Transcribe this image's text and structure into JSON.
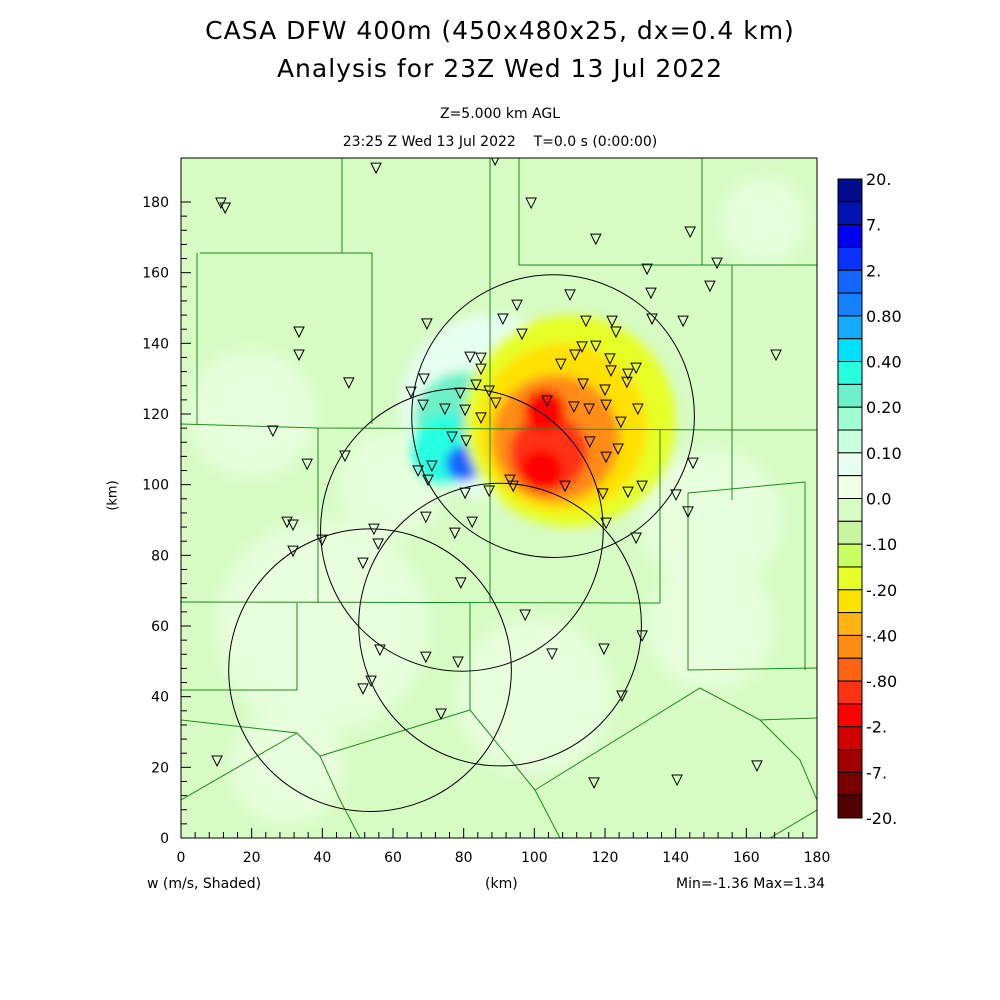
{
  "header": {
    "title_line1": "CASA DFW 400m (450x480x25, dx=0.4 km)",
    "title_line2": "Analysis for 23Z Wed 13 Jul 2022",
    "level": "Z=5.000 km AGL",
    "time": "23:25 Z Wed 13 Jul 2022    T=0.0 s (0:00:00)"
  },
  "footer": {
    "field": "w (m/s, Shaded)",
    "xunit": "(km)",
    "minmax": "Min=-1.36 Max=1.34"
  },
  "chart_data": {
    "type": "heatmap",
    "title": "CASA DFW 400m (450x480x25, dx=0.4 km)",
    "xlabel": "(km)",
    "ylabel": "(km)",
    "xlim": [
      0,
      180
    ],
    "ylim": [
      0,
      192
    ],
    "xticks": [
      "0",
      "20",
      "40",
      "60",
      "80",
      "100",
      "120",
      "140",
      "160",
      "180"
    ],
    "yticks": [
      "0",
      "20",
      "40",
      "60",
      "80",
      "100",
      "120",
      "140",
      "160",
      "180"
    ],
    "colorbar": {
      "labels": [
        "20.",
        "7.",
        "2.",
        "0.80",
        "0.40",
        "0.20",
        "0.10",
        "0.0",
        "-.10",
        "-.20",
        "-.40",
        "-.80",
        "-2.",
        "-7.",
        "-20."
      ],
      "colors": [
        "#000c8c",
        "#0014b4",
        "#0000f5",
        "#0a32ff",
        "#1464ff",
        "#1482ff",
        "#14aaff",
        "#00e1ff",
        "#28ffe1",
        "#6ef0c8",
        "#a0ffd2",
        "#c8ffe1",
        "#e6fff0",
        "#f0ffe6",
        "#d6fbc3",
        "#c8f5a0",
        "#c8ff64",
        "#e6ff28",
        "#ffe100",
        "#ffb414",
        "#ff8c14",
        "#ff6414",
        "#ff3214",
        "#ff0000",
        "#d20000",
        "#a00000",
        "#780000",
        "#500000"
      ]
    },
    "field_min": -1.36,
    "field_max": 1.34,
    "field_features": [
      {
        "x": 88,
        "y": 122,
        "r": 26,
        "color_index": 12
      },
      {
        "x": 80,
        "y": 118,
        "r": 14,
        "color_index": 9
      },
      {
        "x": 75,
        "y": 110,
        "r": 10,
        "color_index": 8
      },
      {
        "x": 88,
        "y": 118,
        "r": 9,
        "color_index": 6
      },
      {
        "x": 92,
        "y": 127,
        "r": 5,
        "color_index": 4
      },
      {
        "x": 87,
        "y": 116,
        "r": 5,
        "color_index": 3
      },
      {
        "x": 80,
        "y": 106,
        "r": 5,
        "color_index": 4
      },
      {
        "x": 110,
        "y": 118,
        "r": 30,
        "color_index": 17
      },
      {
        "x": 108,
        "y": 116,
        "r": 24,
        "color_index": 18
      },
      {
        "x": 106,
        "y": 113,
        "r": 18,
        "color_index": 20
      },
      {
        "x": 104,
        "y": 109,
        "r": 11,
        "color_index": 22
      },
      {
        "x": 103,
        "y": 121,
        "r": 6,
        "color_index": 23
      },
      {
        "x": 102,
        "y": 104,
        "r": 6,
        "color_index": 23
      }
    ],
    "radar_rings_km": [
      {
        "x": 105.3,
        "y": 119.4,
        "r": 40
      },
      {
        "x": 79.5,
        "y": 87.2,
        "r": 40
      },
      {
        "x": 90.3,
        "y": 60.4,
        "r": 40
      },
      {
        "x": 53.5,
        "y": 47.5,
        "r": 40
      }
    ],
    "stations_km": [
      [
        11.3,
        179.7
      ],
      [
        12.5,
        178.3
      ],
      [
        55.2,
        189.6
      ],
      [
        88.9,
        191.9
      ],
      [
        99.1,
        179.7
      ],
      [
        117.4,
        169.5
      ],
      [
        144.1,
        171.5
      ],
      [
        151.7,
        162.7
      ],
      [
        149.7,
        156.2
      ],
      [
        131.9,
        161.0
      ],
      [
        133.0,
        154.2
      ],
      [
        133.3,
        146.9
      ],
      [
        142.1,
        146.3
      ],
      [
        110.1,
        153.7
      ],
      [
        91.1,
        146.9
      ],
      [
        96.5,
        142.6
      ],
      [
        114.6,
        146.3
      ],
      [
        122.0,
        146.3
      ],
      [
        123.1,
        143.2
      ],
      [
        117.4,
        139.2
      ],
      [
        113.5,
        139.0
      ],
      [
        107.5,
        134.1
      ],
      [
        111.5,
        136.7
      ],
      [
        121.4,
        135.6
      ],
      [
        121.7,
        132.2
      ],
      [
        126.5,
        131.3
      ],
      [
        128.8,
        133.0
      ],
      [
        126.2,
        129.0
      ],
      [
        113.8,
        128.5
      ],
      [
        120.0,
        126.8
      ],
      [
        129.3,
        121.4
      ],
      [
        111.2,
        122.0
      ],
      [
        115.5,
        121.4
      ],
      [
        120.3,
        122.5
      ],
      [
        124.5,
        117.7
      ],
      [
        123.7,
        110.1
      ],
      [
        120.3,
        107.8
      ],
      [
        115.7,
        112.1
      ],
      [
        103.6,
        123.7
      ],
      [
        95.1,
        150.8
      ],
      [
        81.8,
        136.1
      ],
      [
        84.9,
        135.8
      ],
      [
        84.9,
        132.7
      ],
      [
        87.2,
        126.5
      ],
      [
        69.6,
        145.5
      ],
      [
        33.4,
        143.2
      ],
      [
        33.4,
        136.7
      ],
      [
        47.5,
        128.8
      ],
      [
        68.8,
        129.9
      ],
      [
        65.1,
        126.2
      ],
      [
        68.5,
        122.5
      ],
      [
        79.0,
        125.9
      ],
      [
        83.5,
        128.2
      ],
      [
        74.7,
        121.4
      ],
      [
        80.4,
        121.1
      ],
      [
        84.9,
        118.9
      ],
      [
        89.1,
        123.1
      ],
      [
        80.7,
        112.4
      ],
      [
        76.7,
        113.5
      ],
      [
        71.0,
        105.3
      ],
      [
        67.1,
        103.9
      ],
      [
        69.9,
        101.3
      ],
      [
        80.4,
        97.6
      ],
      [
        87.2,
        98.2
      ],
      [
        93.1,
        101.3
      ],
      [
        94.0,
        99.6
      ],
      [
        108.7,
        99.6
      ],
      [
        119.4,
        97.4
      ],
      [
        126.5,
        97.9
      ],
      [
        130.5,
        99.6
      ],
      [
        140.1,
        97.1
      ],
      [
        143.5,
        92.3
      ],
      [
        120.3,
        89.1
      ],
      [
        128.8,
        84.9
      ],
      [
        69.3,
        90.8
      ],
      [
        77.5,
        86.3
      ],
      [
        82.4,
        89.4
      ],
      [
        46.4,
        108.1
      ],
      [
        26.0,
        115.2
      ],
      [
        35.7,
        105.8
      ],
      [
        30.0,
        89.4
      ],
      [
        31.7,
        88.6
      ],
      [
        31.7,
        81.2
      ],
      [
        39.9,
        84.3
      ],
      [
        54.6,
        87.4
      ],
      [
        55.8,
        83.2
      ],
      [
        51.5,
        77.8
      ],
      [
        79.2,
        72.2
      ],
      [
        97.4,
        63.1
      ],
      [
        130.5,
        57.2
      ],
      [
        105.0,
        52.1
      ],
      [
        119.7,
        53.5
      ],
      [
        56.3,
        53.2
      ],
      [
        69.3,
        51.2
      ],
      [
        78.4,
        49.8
      ],
      [
        51.5,
        42.2
      ],
      [
        53.8,
        44.4
      ],
      [
        73.6,
        35.1
      ],
      [
        124.8,
        40.2
      ],
      [
        163.0,
        20.4
      ],
      [
        140.4,
        16.4
      ],
      [
        116.9,
        15.6
      ],
      [
        10.2,
        21.8
      ],
      [
        168.4,
        136.7
      ],
      [
        144.9,
        106.1
      ]
    ]
  }
}
